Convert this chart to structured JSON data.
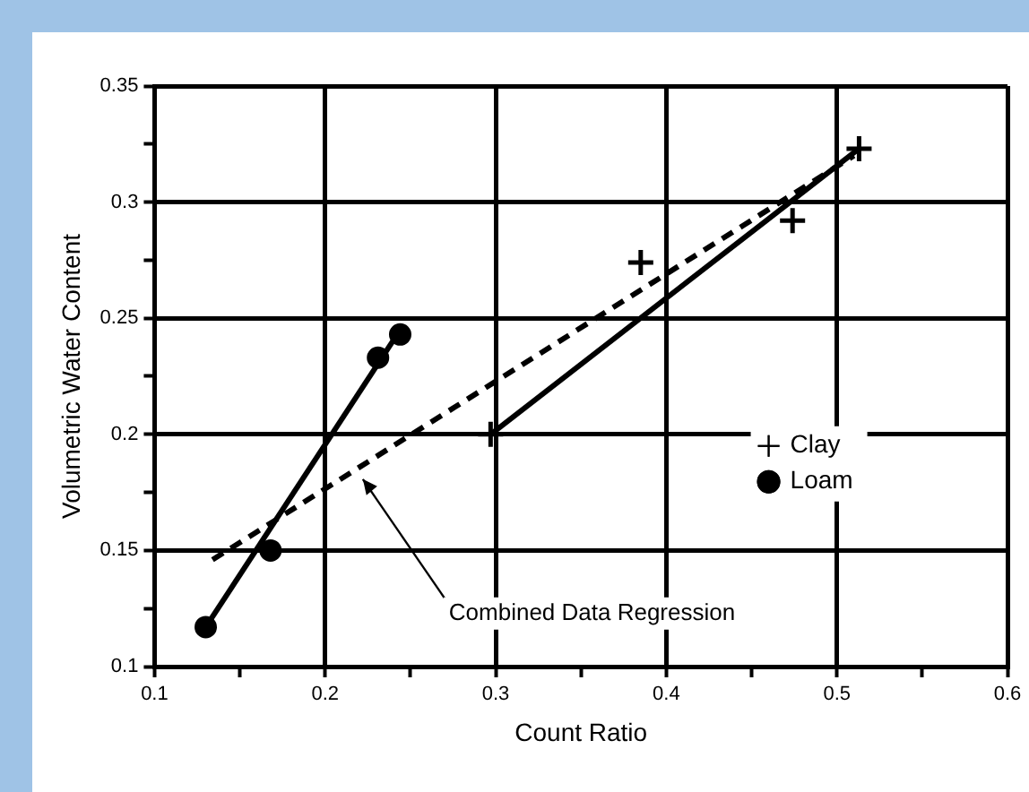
{
  "chart_data": {
    "type": "scatter",
    "xlabel": "Count Ratio",
    "ylabel": "Volumetric Water Content",
    "xlim": [
      0.1,
      0.6
    ],
    "ylim": [
      0.1,
      0.35
    ],
    "xticks": [
      0.1,
      {
        "value": 0.15,
        "label": null
      },
      0.2,
      {
        "value": 0.25,
        "label": null
      },
      0.3,
      {
        "value": 0.35,
        "label": null
      },
      0.4,
      {
        "value": 0.45,
        "label": null
      },
      0.5,
      {
        "value": 0.55,
        "label": null
      },
      0.6
    ],
    "yticks": [
      0.1,
      {
        "value": 0.125,
        "label": null
      },
      0.15,
      {
        "value": 0.175,
        "label": null
      },
      0.2,
      {
        "value": 0.225,
        "label": null
      },
      0.25,
      {
        "value": 0.275,
        "label": null
      },
      0.3,
      {
        "value": 0.325,
        "label": null
      },
      0.35
    ],
    "grid": true,
    "legend": "right",
    "series": [
      {
        "name": "Clay",
        "marker": "cross",
        "color": "#000000",
        "x": [
          0.297,
          0.385,
          0.474,
          0.513
        ],
        "values": [
          0.2,
          0.274,
          0.292,
          0.323
        ]
      },
      {
        "name": "Loam",
        "marker": "circle",
        "color": "#000000",
        "x": [
          0.13,
          0.168,
          0.231,
          0.244
        ],
        "values": [
          0.117,
          0.15,
          0.233,
          0.243
        ]
      },
      {
        "type": "line",
        "line_style": "solid",
        "color": "#000000",
        "x": [
          0.297,
          0.513
        ],
        "values": [
          0.2,
          0.323
        ]
      },
      {
        "type": "line",
        "line_style": "solid",
        "color": "#000000",
        "x": [
          0.13,
          0.244
        ],
        "values": [
          0.117,
          0.245
        ]
      },
      {
        "type": "line",
        "line_style": "dashed",
        "color": "#000000",
        "x": [
          0.134,
          0.51
        ],
        "values": [
          0.146,
          0.32
        ]
      }
    ],
    "annotations": [
      {
        "text": "Combined Data Regression",
        "x": 0.22,
        "y": 0.183
      }
    ]
  }
}
